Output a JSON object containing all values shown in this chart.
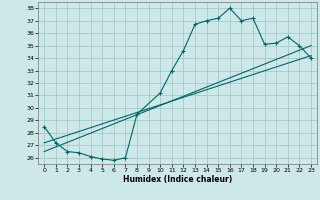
{
  "xlabel": "Humidex (Indice chaleur)",
  "ylabel": "",
  "xlim": [
    -0.5,
    23.5
  ],
  "ylim": [
    25.5,
    38.5
  ],
  "yticks": [
    26,
    27,
    28,
    29,
    30,
    31,
    32,
    33,
    34,
    35,
    36,
    37,
    38
  ],
  "xticks": [
    0,
    1,
    2,
    3,
    4,
    5,
    6,
    7,
    8,
    9,
    10,
    11,
    12,
    13,
    14,
    15,
    16,
    17,
    18,
    19,
    20,
    21,
    22,
    23
  ],
  "background_color": "#cce8e8",
  "grid_color": "#aac8c8",
  "line_color": "#006666",
  "line1_x": [
    0,
    1,
    2,
    3,
    4,
    5,
    6,
    7,
    8,
    10,
    11,
    12,
    13,
    14,
    15,
    16,
    17,
    18,
    19,
    20,
    21,
    22,
    23
  ],
  "line1_y": [
    28.5,
    27.2,
    26.5,
    26.4,
    26.1,
    25.9,
    25.8,
    26.0,
    29.5,
    31.2,
    33.0,
    34.6,
    36.7,
    37.0,
    37.2,
    38.0,
    37.0,
    37.2,
    35.1,
    35.2,
    35.7,
    35.0,
    34.0
  ],
  "line2_x": [
    0,
    23
  ],
  "line2_y": [
    26.5,
    35.0
  ],
  "line3_x": [
    0,
    23
  ],
  "line3_y": [
    27.2,
    34.2
  ]
}
